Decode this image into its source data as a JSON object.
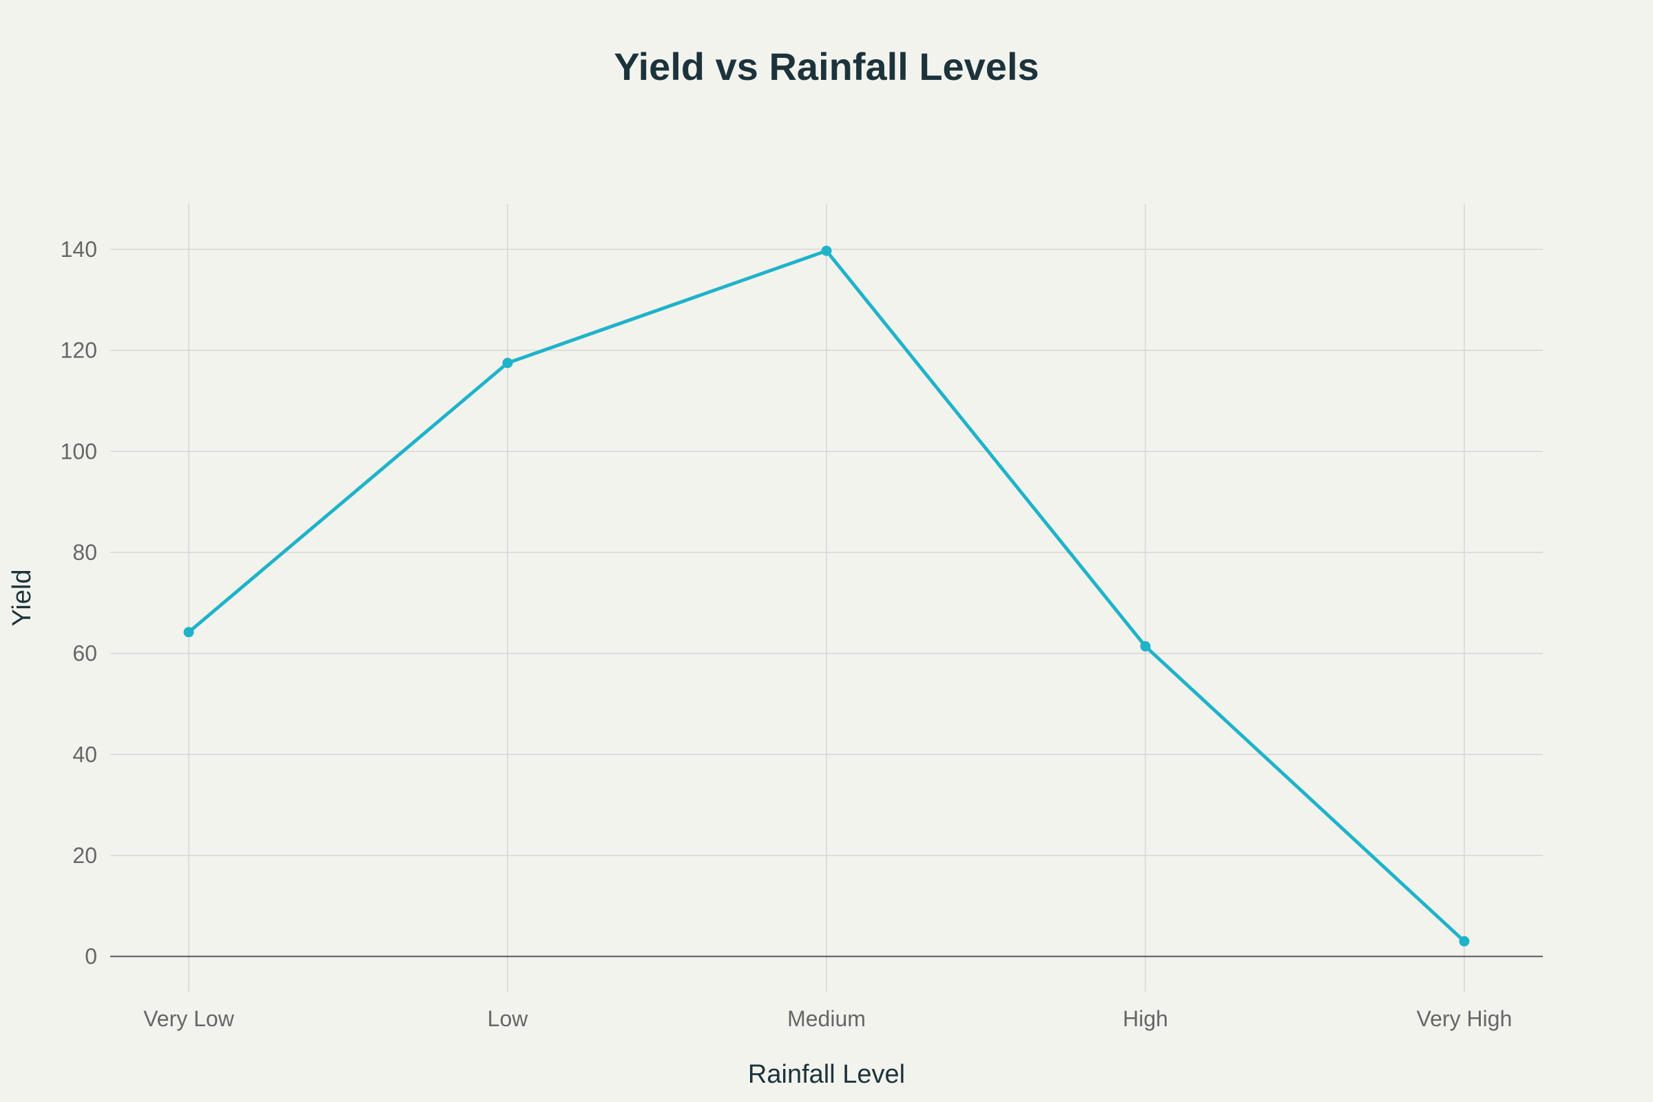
{
  "chart_data": {
    "type": "line",
    "title": "Yield vs Rainfall Levels",
    "xlabel": "Rainfall Level",
    "ylabel": "Yield",
    "categories": [
      "Very Low",
      "Low",
      "Medium",
      "High",
      "Very High"
    ],
    "series": [
      {
        "values": [
          64.2,
          117.5,
          139.7,
          61.4,
          3.0
        ]
      }
    ],
    "ylim": [
      -7,
      149
    ],
    "yticks": [
      0,
      20,
      40,
      60,
      80,
      100,
      120,
      140
    ],
    "grid": true,
    "legend": "none",
    "colors": {
      "line": "#1fb3c9",
      "grid": "#d6d6d2",
      "zero_line": "#555555",
      "background": "#f3f3ee"
    }
  }
}
